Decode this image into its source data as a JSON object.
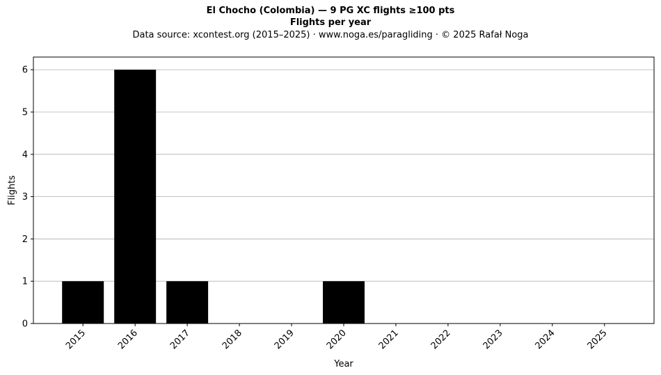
{
  "chart_data": {
    "type": "bar",
    "title": "El Chocho (Colombia)  —  9 PG XC flights ≥100 pts",
    "subtitle": "Flights per year",
    "source_note": "Data source: xcontest.org (2015–2025)  ·  www.noga.es/paragliding  ·  © 2025 Rafał Noga",
    "xlabel": "Year",
    "ylabel": "Flights",
    "categories": [
      "2015",
      "2016",
      "2017",
      "2018",
      "2019",
      "2020",
      "2021",
      "2022",
      "2023",
      "2024",
      "2025"
    ],
    "values": [
      1,
      6,
      1,
      0,
      0,
      1,
      0,
      0,
      0,
      0,
      0
    ],
    "ylim": [
      0,
      6.3
    ],
    "yticks": [
      0,
      1,
      2,
      3,
      4,
      5,
      6
    ],
    "grid": "y",
    "bar_color": "#000000",
    "grid_color": "#b0b0b0"
  }
}
